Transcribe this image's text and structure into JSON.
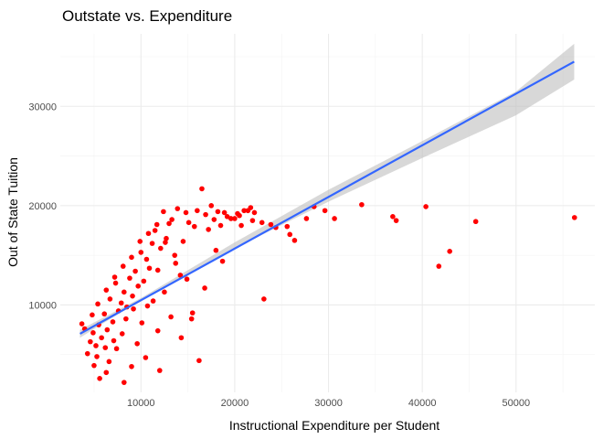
{
  "chart_data": {
    "type": "scatter",
    "title": "Outstate vs. Expenditure",
    "xlabel": "Instructional Expenditure per Student",
    "ylabel": "Out of State Tuition",
    "xlim": [
      1400,
      58400
    ],
    "ylim": [
      1200,
      37300
    ],
    "x_ticks": [
      10000,
      20000,
      30000,
      40000,
      50000
    ],
    "y_ticks": [
      10000,
      20000,
      30000
    ],
    "x_tick_labels": [
      "10000",
      "20000",
      "30000",
      "40000",
      "50000"
    ],
    "y_tick_labels": [
      "10000",
      "20000",
      "30000"
    ],
    "grid": true,
    "point_color": "#FF0000",
    "points": [
      [
        56233,
        18800
      ],
      [
        45702,
        18400
      ],
      [
        42926,
        15400
      ],
      [
        41766,
        13900
      ],
      [
        40386,
        19900
      ],
      [
        37219,
        18500
      ],
      [
        36854,
        18900
      ],
      [
        33541,
        20100
      ],
      [
        30639,
        18700
      ],
      [
        29619,
        19500
      ],
      [
        28462,
        19900
      ],
      [
        27650,
        18700
      ],
      [
        26385,
        16500
      ],
      [
        25878,
        17100
      ],
      [
        25591,
        17900
      ],
      [
        24386,
        17800
      ],
      [
        23850,
        18100
      ],
      [
        23115,
        10600
      ],
      [
        22905,
        18300
      ],
      [
        22100,
        19300
      ],
      [
        21900,
        18500
      ],
      [
        21700,
        19800
      ],
      [
        21409,
        19500
      ],
      [
        21000,
        19500
      ],
      [
        20700,
        18000
      ],
      [
        20500,
        19000
      ],
      [
        20300,
        19200
      ],
      [
        20000,
        18700
      ],
      [
        19600,
        18700
      ],
      [
        19200,
        18900
      ],
      [
        18900,
        19300
      ],
      [
        18500,
        18000
      ],
      [
        18200,
        19400
      ],
      [
        18000,
        15500
      ],
      [
        17800,
        18600
      ],
      [
        17500,
        20000
      ],
      [
        17200,
        17600
      ],
      [
        16900,
        19100
      ],
      [
        16500,
        21700
      ],
      [
        16200,
        4400
      ],
      [
        16000,
        19500
      ],
      [
        15700,
        17900
      ],
      [
        15400,
        8600
      ],
      [
        15100,
        18300
      ],
      [
        14800,
        19300
      ],
      [
        14500,
        16400
      ],
      [
        14200,
        13000
      ],
      [
        13900,
        19700
      ],
      [
        13600,
        15000
      ],
      [
        13300,
        18600
      ],
      [
        13000,
        18200
      ],
      [
        12700,
        16700
      ],
      [
        12400,
        19400
      ],
      [
        12100,
        15700
      ],
      [
        11800,
        13500
      ],
      [
        11500,
        17500
      ],
      [
        11200,
        16200
      ],
      [
        10900,
        13700
      ],
      [
        10600,
        14600
      ],
      [
        10300,
        12400
      ],
      [
        10000,
        15300
      ],
      [
        9700,
        11900
      ],
      [
        9400,
        13400
      ],
      [
        9100,
        10900
      ],
      [
        8800,
        12700
      ],
      [
        8500,
        9800
      ],
      [
        8200,
        11300
      ],
      [
        7900,
        10200
      ],
      [
        7600,
        9400
      ],
      [
        7300,
        12200
      ],
      [
        7000,
        8300
      ],
      [
        6700,
        10600
      ],
      [
        6400,
        7500
      ],
      [
        6100,
        9100
      ],
      [
        5800,
        6700
      ],
      [
        5500,
        8000
      ],
      [
        5200,
        5900
      ],
      [
        4900,
        7200
      ],
      [
        4600,
        6300
      ],
      [
        4300,
        5100
      ],
      [
        4000,
        7600
      ],
      [
        3700,
        8100
      ],
      [
        5000,
        3900
      ],
      [
        5600,
        2600
      ],
      [
        6300,
        3200
      ],
      [
        8200,
        2200
      ],
      [
        9000,
        3800
      ],
      [
        10500,
        4700
      ],
      [
        12000,
        3400
      ],
      [
        15500,
        9200
      ],
      [
        16800,
        11700
      ],
      [
        18700,
        14400
      ],
      [
        14300,
        6700
      ],
      [
        13200,
        8800
      ],
      [
        11800,
        7400
      ],
      [
        10700,
        9900
      ],
      [
        9600,
        6100
      ],
      [
        8400,
        8600
      ],
      [
        7400,
        5600
      ],
      [
        6600,
        4300
      ],
      [
        12500,
        11300
      ],
      [
        11300,
        10400
      ],
      [
        10100,
        8200
      ],
      [
        9200,
        9600
      ],
      [
        8000,
        7100
      ],
      [
        7100,
        6400
      ],
      [
        6200,
        5700
      ],
      [
        5300,
        4800
      ],
      [
        14900,
        12600
      ],
      [
        13700,
        14200
      ],
      [
        12600,
        16300
      ],
      [
        11700,
        18100
      ],
      [
        10800,
        17200
      ],
      [
        9900,
        16400
      ],
      [
        9000,
        14800
      ],
      [
        8100,
        13900
      ],
      [
        7200,
        12800
      ],
      [
        6300,
        11500
      ],
      [
        5400,
        10100
      ],
      [
        4800,
        9000
      ]
    ],
    "trend_line": {
      "color": "#3366FF",
      "band_color": "#BEBEBE",
      "points": [
        [
          3500,
          7100
        ],
        [
          56200,
          34500
        ]
      ],
      "band_low": [
        [
          3500,
          6700
        ],
        [
          10000,
          10500
        ],
        [
          20000,
          15700
        ],
        [
          30000,
          20400
        ],
        [
          40000,
          24800
        ],
        [
          50000,
          29100
        ],
        [
          56200,
          32700
        ]
      ],
      "band_high": [
        [
          3500,
          7500
        ],
        [
          10000,
          10700
        ],
        [
          20000,
          16300
        ],
        [
          30000,
          21600
        ],
        [
          40000,
          26500
        ],
        [
          50000,
          31500
        ],
        [
          56200,
          36300
        ]
      ]
    }
  }
}
